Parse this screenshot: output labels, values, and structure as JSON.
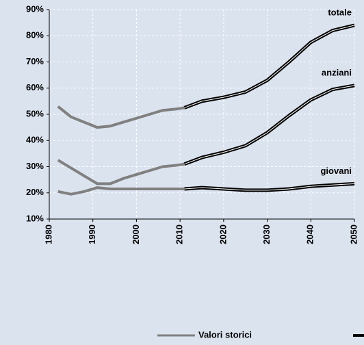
{
  "chart_data": {
    "type": "line",
    "x": [
      1982,
      1985,
      1988,
      1991,
      1994,
      1997,
      2000,
      2003,
      2006,
      2009,
      2011,
      2015,
      2020,
      2025,
      2030,
      2035,
      2040,
      2045,
      2050
    ],
    "series": [
      {
        "name": "Valori storici",
        "color": "#808080",
        "lines": [
          {
            "values": [
              53,
              49,
              47,
              45,
              45.5,
              47,
              48.5,
              50,
              51.5,
              52,
              52.5,
              null,
              null,
              null,
              null,
              null,
              null,
              null,
              null
            ]
          },
          {
            "values": [
              32.5,
              29.5,
              26.5,
              23.5,
              23.5,
              25.5,
              27,
              28.5,
              30,
              30.5,
              31,
              null,
              null,
              null,
              null,
              null,
              null,
              null,
              null
            ]
          },
          {
            "values": [
              20.5,
              19.5,
              20.5,
              22,
              21.5,
              21.5,
              21.5,
              21.5,
              21.5,
              21.5,
              21.5,
              null,
              null,
              null,
              null,
              null,
              null,
              null,
              null
            ]
          }
        ]
      },
      {
        "color": "#000000",
        "lines": [
          {
            "label": "totale",
            "values": [
              null,
              null,
              null,
              null,
              null,
              null,
              null,
              null,
              null,
              null,
              52.5,
              55,
              56.5,
              58.5,
              63,
              70,
              77.5,
              82,
              84
            ]
          },
          {
            "label": "anziani",
            "values": [
              null,
              null,
              null,
              null,
              null,
              null,
              null,
              null,
              null,
              null,
              31,
              33.5,
              35.5,
              38,
              43,
              49.5,
              55.5,
              59.5,
              61
            ]
          },
          {
            "label": "giovani",
            "values": [
              null,
              null,
              null,
              null,
              null,
              null,
              null,
              null,
              null,
              null,
              21.5,
              22,
              21.5,
              21,
              21,
              21.5,
              22.5,
              23,
              23.5
            ]
          }
        ]
      }
    ],
    "xlim": [
      1980,
      2050
    ],
    "xticks": [
      1980,
      1990,
      2000,
      2010,
      2020,
      2030,
      2040,
      2050
    ],
    "ylim": [
      10,
      90
    ],
    "yticks": [
      {
        "value": 10,
        "label": "10%"
      },
      {
        "value": 20,
        "label": "20%"
      },
      {
        "value": 30,
        "label": "30%"
      },
      {
        "value": 40,
        "label": "40%"
      },
      {
        "value": 50,
        "label": "50%"
      },
      {
        "value": 60,
        "label": "60%"
      },
      {
        "value": 70,
        "label": "70%"
      },
      {
        "value": 80,
        "label": "80%"
      },
      {
        "value": 90,
        "label": "90%"
      }
    ],
    "grid": true
  }
}
